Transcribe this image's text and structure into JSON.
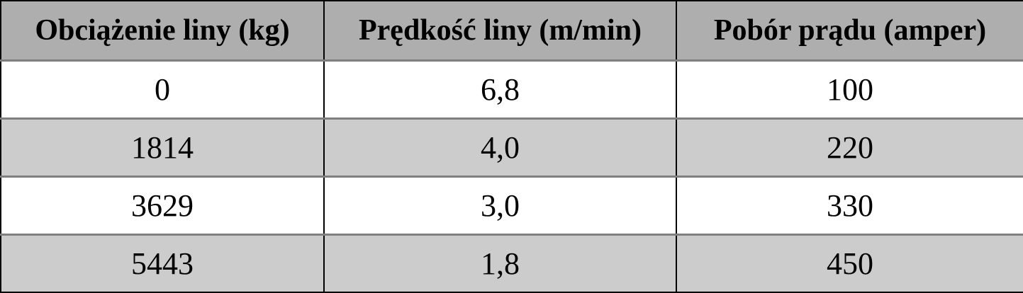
{
  "table": {
    "columns": [
      "Obciążenie liny (kg)",
      "Prędkość liny (m/min)",
      "Pobór prądu (amper)"
    ],
    "rows": [
      [
        "0",
        "6,8",
        "100"
      ],
      [
        "1814",
        "4,0",
        "220"
      ],
      [
        "3629",
        "3,0",
        "330"
      ],
      [
        "5443",
        "1,8",
        "450"
      ]
    ]
  },
  "colors": {
    "header_bg": "#aeaeae",
    "row_bg": "#ffffff",
    "row_alt_bg": "#cccccc",
    "horizontal_grid": "#7f7f7f",
    "vertical_grid": "#000000",
    "outer_border": "#000000",
    "text": "#000000"
  }
}
